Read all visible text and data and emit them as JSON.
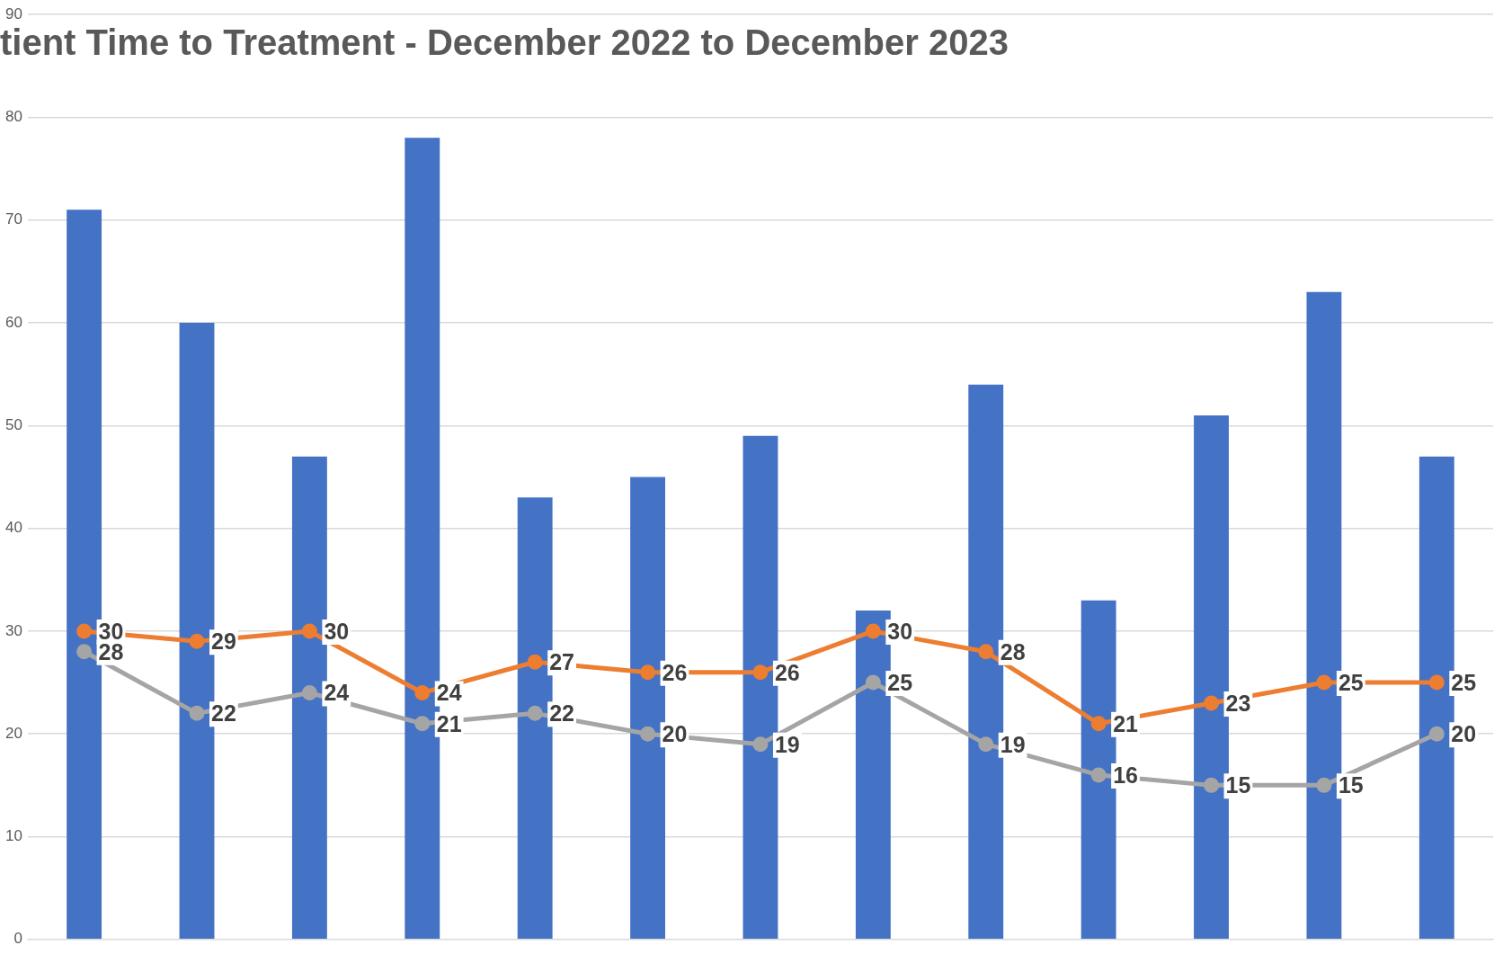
{
  "chart_data": {
    "type": "bar",
    "title": "tient Time to Treatment - December 2022 to December 2023",
    "categories": [
      null,
      null,
      null,
      null,
      null,
      null,
      null,
      null,
      null,
      null,
      null,
      null,
      null
    ],
    "series": [
      {
        "color": "#4472c4",
        "values": [
          71,
          60,
          47,
          78,
          43,
          45,
          49,
          32,
          54,
          33,
          51,
          63,
          47
        ]
      },
      {
        "type": "line",
        "color": "#ed7d31",
        "values": [
          30,
          29,
          30,
          24,
          27,
          26,
          26,
          30,
          28,
          21,
          23,
          25,
          25
        ],
        "value_labels": [
          "30",
          "29",
          "30",
          "24",
          "27",
          "26",
          "26",
          "30",
          "28",
          "21",
          "23",
          "25",
          "25"
        ]
      },
      {
        "type": "line",
        "color": "#a5a5a5",
        "values": [
          28,
          22,
          24,
          21,
          22,
          20,
          19,
          25,
          19,
          16,
          15,
          15,
          20
        ],
        "value_labels": [
          "28",
          "22",
          "24",
          "21",
          "22",
          "20",
          "19",
          "25",
          "19",
          "16",
          "15",
          "15",
          "20"
        ]
      }
    ],
    "ylim": [
      0,
      90
    ],
    "yticks": [
      0,
      10,
      20,
      30,
      40,
      50,
      60,
      70,
      80,
      90
    ],
    "grid": "y",
    "legend": false,
    "marker": "circle",
    "line_style": "solid"
  }
}
